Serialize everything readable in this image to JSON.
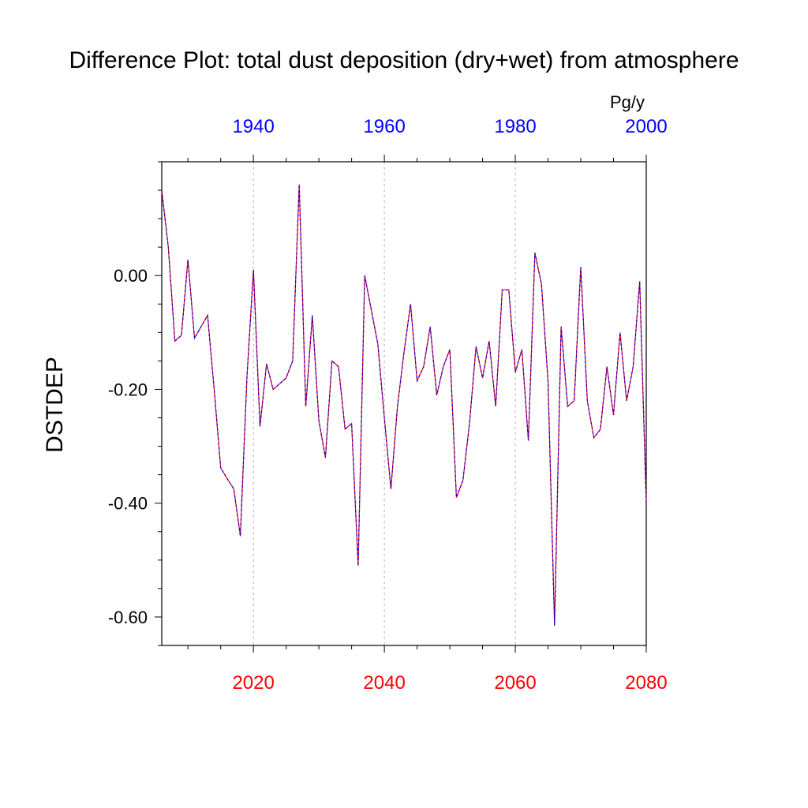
{
  "chart_data": {
    "type": "line",
    "title": "Difference Plot: total dust deposition (dry+wet) from atmosphere",
    "ylabel": "DSTDEP",
    "units": "Pg/y",
    "ylim": [
      -0.65,
      0.2
    ],
    "yticks": [
      0.0,
      -0.2,
      -0.4,
      -0.6
    ],
    "ytick_labels": [
      "0.00",
      "-0.20",
      "-0.40",
      "-0.60"
    ],
    "bottom_axis": {
      "range": [
        2006,
        2080
      ],
      "ticks": [
        2020,
        2040,
        2060,
        2080
      ],
      "color": "#ff0000"
    },
    "top_axis": {
      "range": [
        1926,
        2000
      ],
      "ticks": [
        1940,
        1960,
        1980,
        2000
      ],
      "color": "#0000ff"
    },
    "grid_x": [
      2020,
      2040,
      2060
    ],
    "series": [
      {
        "color_a": "#ff0000",
        "color_b": "#0000ff",
        "x": [
          2006,
          2007,
          2008,
          2009,
          2010,
          2011,
          2012,
          2013,
          2014,
          2015,
          2016,
          2017,
          2018,
          2019,
          2020,
          2021,
          2022,
          2023,
          2024,
          2025,
          2026,
          2027,
          2028,
          2029,
          2030,
          2031,
          2032,
          2033,
          2034,
          2035,
          2036,
          2037,
          2038,
          2039,
          2040,
          2041,
          2042,
          2043,
          2044,
          2045,
          2046,
          2047,
          2048,
          2049,
          2050,
          2051,
          2052,
          2053,
          2054,
          2055,
          2056,
          2057,
          2058,
          2059,
          2060,
          2061,
          2062,
          2063,
          2064,
          2065,
          2066,
          2067,
          2068,
          2069,
          2070,
          2071,
          2072,
          2073,
          2074,
          2075,
          2076,
          2077,
          2078,
          2079,
          2080
        ],
        "y": [
          0.15,
          0.05,
          -0.115,
          -0.105,
          0.028,
          -0.11,
          -0.09,
          -0.07,
          -0.2,
          -0.338,
          -0.357,
          -0.375,
          -0.458,
          -0.18,
          0.01,
          -0.265,
          -0.155,
          -0.2,
          -0.19,
          -0.18,
          -0.15,
          0.16,
          -0.23,
          -0.07,
          -0.255,
          -0.32,
          -0.15,
          -0.16,
          -0.27,
          -0.26,
          -0.51,
          0.0,
          -0.06,
          -0.12,
          -0.25,
          -0.375,
          -0.23,
          -0.135,
          -0.05,
          -0.185,
          -0.16,
          -0.09,
          -0.21,
          -0.16,
          -0.13,
          -0.39,
          -0.36,
          -0.26,
          -0.125,
          -0.18,
          -0.115,
          -0.23,
          -0.025,
          -0.025,
          -0.17,
          -0.13,
          -0.29,
          0.04,
          -0.015,
          -0.185,
          -0.615,
          -0.09,
          -0.23,
          -0.22,
          0.015,
          -0.22,
          -0.285,
          -0.27,
          -0.16,
          -0.245,
          -0.1,
          -0.22,
          -0.16,
          -0.01,
          -0.4
        ]
      }
    ]
  }
}
